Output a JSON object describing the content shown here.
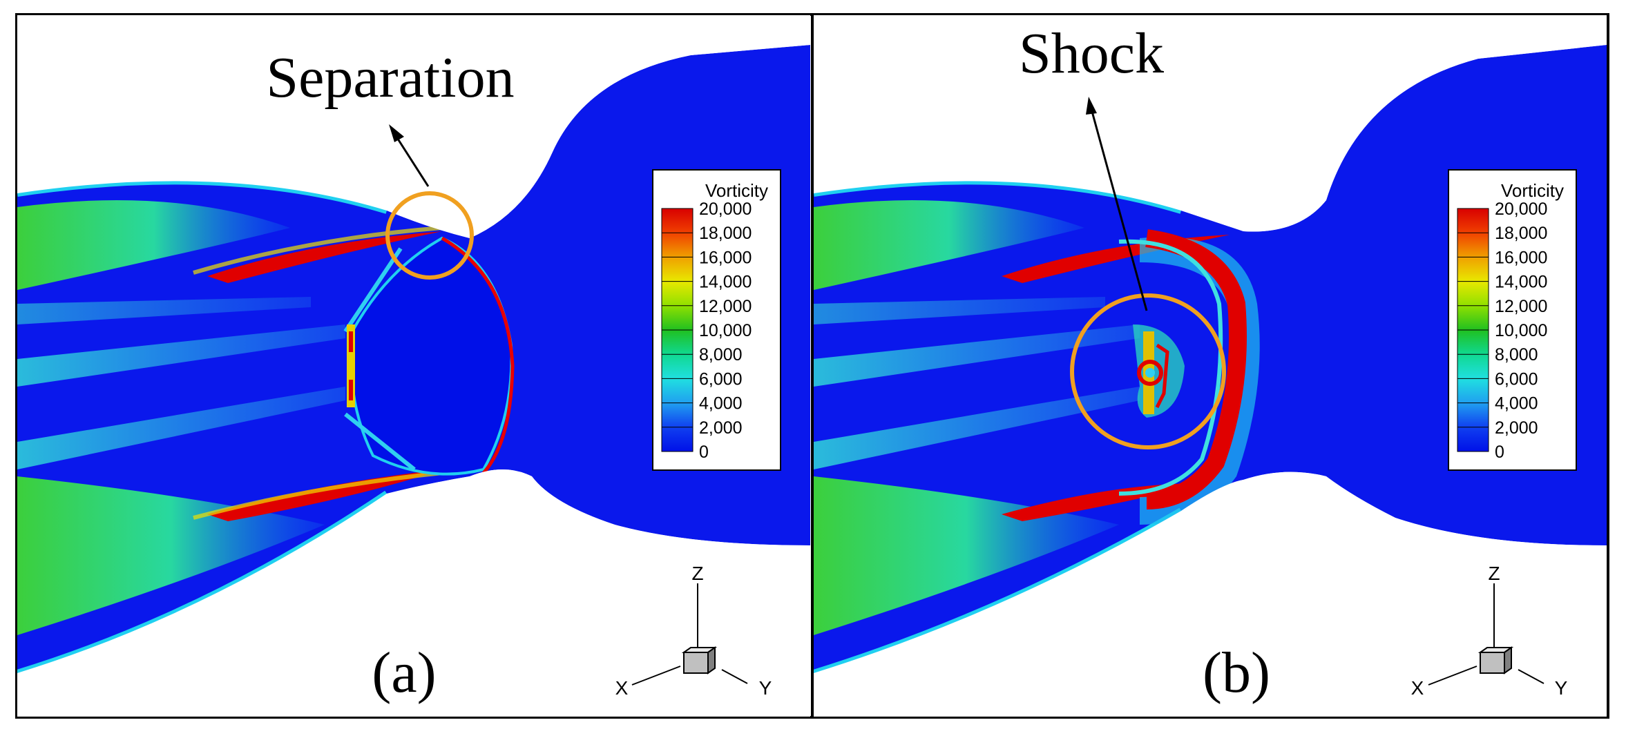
{
  "panels": [
    {
      "label": "(a)",
      "annotation": "Separation",
      "legend_title": "Vorticity",
      "axes": {
        "z": "Z",
        "x": "X",
        "y": "Y"
      }
    },
    {
      "label": "(b)",
      "annotation": "Shock",
      "legend_title": "Vorticity",
      "axes": {
        "z": "Z",
        "x": "X",
        "y": "Y"
      }
    }
  ],
  "legend_levels": [
    "20,000",
    "18,000",
    "16,000",
    "14,000",
    "12,000",
    "10,000",
    "8,000",
    "6,000",
    "4,000",
    "2,000",
    "0"
  ],
  "colors": {
    "background": "#0a12ee",
    "high": "#e80000",
    "mid": "#2ecc2e",
    "low_cyan": "#28e4e4",
    "circle": "#f0a020",
    "frame": "#000000"
  }
}
